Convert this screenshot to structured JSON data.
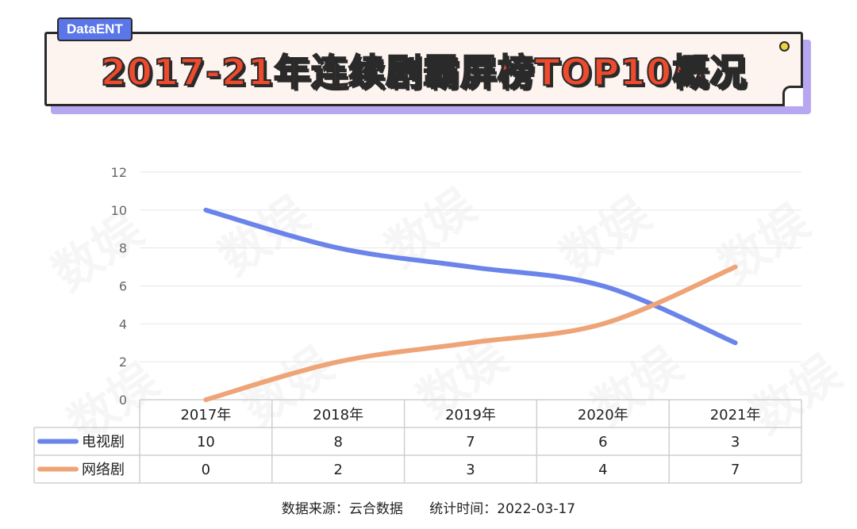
{
  "badge": "DataENT",
  "title": "2017-21年连续剧霸屏榜TOP10概况",
  "watermark_text": "数娱",
  "footer": {
    "source": "数据来源：云合数据",
    "date": "统计时间：2022-03-17"
  },
  "chart_data": {
    "type": "line",
    "categories": [
      "2017年",
      "2018年",
      "2019年",
      "2020年",
      "2021年"
    ],
    "series": [
      {
        "name": "电视剧",
        "values": [
          10,
          8,
          7,
          6,
          3
        ],
        "color": "#6a84ea"
      },
      {
        "name": "网络剧",
        "values": [
          0,
          2,
          3,
          4,
          7
        ],
        "color": "#eea476"
      }
    ],
    "ylim": [
      0,
      12
    ],
    "yticks": [
      "0",
      "2",
      "4",
      "6",
      "8",
      "10",
      "12"
    ],
    "grid": true,
    "legend": "data-table-below"
  }
}
